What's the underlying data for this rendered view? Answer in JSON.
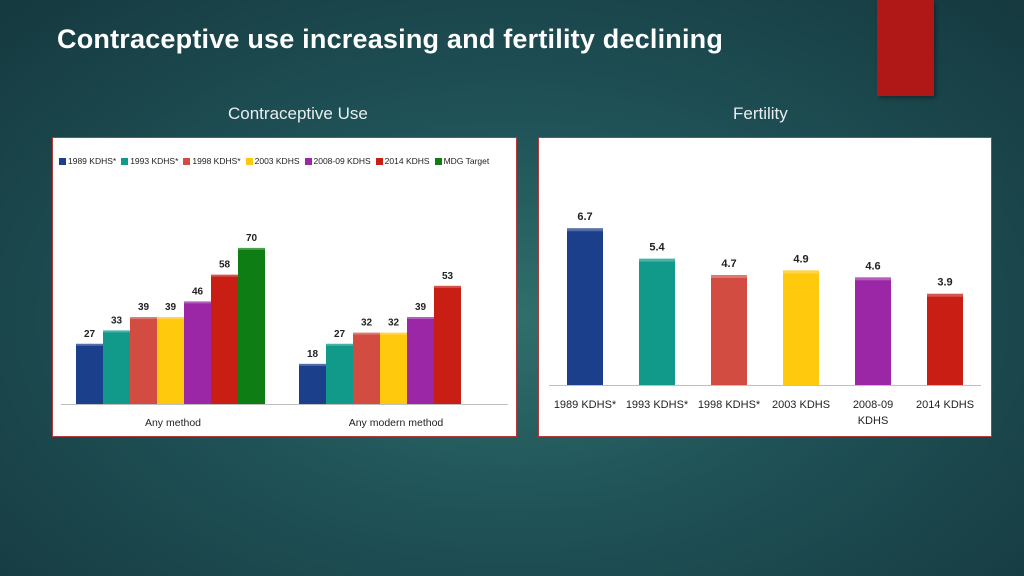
{
  "slide": {
    "title": "Contraceptive use increasing and fertility declining",
    "left_heading": "Contraceptive Use",
    "right_heading": "Fertility",
    "accent_color": "#b01818"
  },
  "chart_data": [
    {
      "type": "bar",
      "title": "Contraceptive Use",
      "categories": [
        "Any method",
        "Any modern method"
      ],
      "series": [
        {
          "name": "1989 KDHS*",
          "color": "#1b3f8b",
          "values": [
            27,
            18
          ]
        },
        {
          "name": "1993 KDHS*",
          "color": "#11998a",
          "values": [
            33,
            27
          ]
        },
        {
          "name": "1998 KDHS*",
          "color": "#d24c42",
          "values": [
            39,
            32
          ]
        },
        {
          "name": "2003 KDHS",
          "color": "#ffc90e",
          "values": [
            39,
            32
          ]
        },
        {
          "name": "2008-09 KDHS",
          "color": "#9b27a6",
          "values": [
            46,
            39
          ]
        },
        {
          "name": "2014 KDHS",
          "color": "#c81e14",
          "values": [
            58,
            53
          ]
        },
        {
          "name": "MDG Target",
          "color": "#0e7d14",
          "values": [
            70,
            null
          ]
        }
      ],
      "ylim": [
        0,
        75
      ],
      "legend_position": "top",
      "xlabel": "",
      "ylabel": ""
    },
    {
      "type": "bar",
      "title": "Fertility",
      "categories": [
        "1989 KDHS*",
        "1993 KDHS*",
        "1998 KDHS*",
        "2003 KDHS",
        "2008-09 KDHS",
        "2014 KDHS"
      ],
      "category_lines": [
        [
          "1989 KDHS*"
        ],
        [
          "1993 KDHS*"
        ],
        [
          "1998 KDHS*"
        ],
        [
          "2003 KDHS"
        ],
        [
          "2008-09",
          "KDHS"
        ],
        [
          "2014 KDHS"
        ]
      ],
      "values": [
        6.7,
        5.4,
        4.7,
        4.9,
        4.6,
        3.9
      ],
      "colors": [
        "#1b3f8b",
        "#11998a",
        "#d24c42",
        "#ffc90e",
        "#9b27a6",
        "#c81e14"
      ],
      "ylim": [
        0,
        8
      ],
      "xlabel": "",
      "ylabel": ""
    }
  ]
}
